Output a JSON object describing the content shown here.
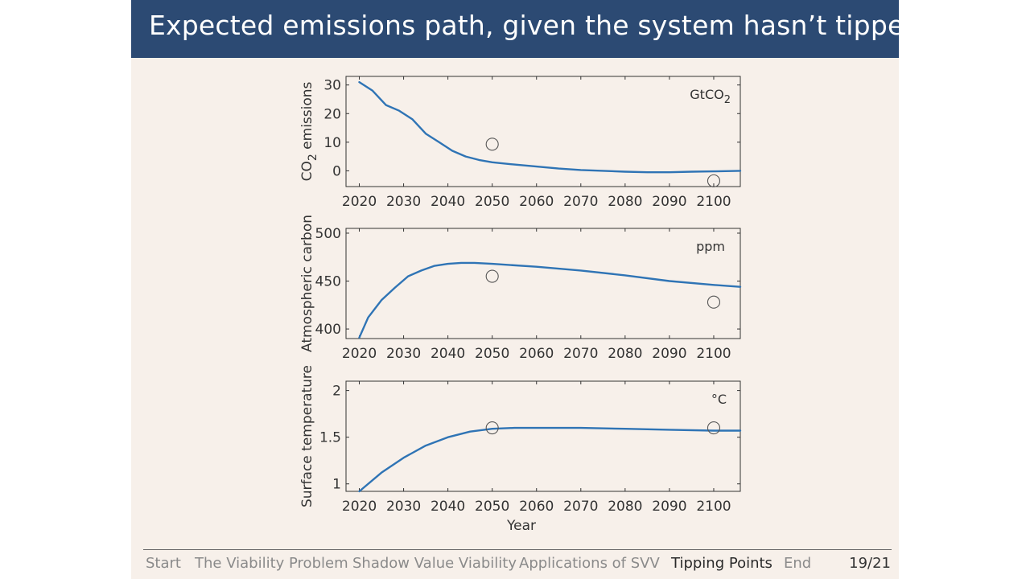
{
  "title": "Expected emissions path, given the system hasn’t tipped:",
  "footer": {
    "nav": [
      {
        "label": "Start",
        "active": false
      },
      {
        "label": "The Viability Problem",
        "active": false
      },
      {
        "label": "Shadow Value Viability",
        "active": false
      },
      {
        "label": "Applications of SVV",
        "active": false
      },
      {
        "label": "Tipping Points",
        "active": true
      },
      {
        "label": "End",
        "active": false
      }
    ],
    "page": "19/21"
  },
  "colors": {
    "line": "#2f74b5",
    "title_bar": "#2c4a73",
    "slide_bg": "#f7f0ea"
  },
  "chart_data": [
    {
      "type": "line",
      "ylabel": "CO2 emissions",
      "ylabel_main": "CO",
      "ylabel_sub": "2",
      "ylabel_rest": " emissions",
      "unit": "GtCO",
      "unit_sub": "2",
      "xlim": [
        2017,
        2106
      ],
      "ylim": [
        -5.5,
        33
      ],
      "yticks": [
        0,
        10,
        20,
        30
      ],
      "xticks": [
        2020,
        2030,
        2040,
        2050,
        2060,
        2070,
        2080,
        2090,
        2100
      ],
      "x": [
        2020,
        2023,
        2026,
        2029,
        2032,
        2035,
        2038,
        2041,
        2044,
        2047,
        2050,
        2055,
        2060,
        2065,
        2070,
        2075,
        2080,
        2085,
        2090,
        2095,
        2100,
        2106
      ],
      "y": [
        31,
        28,
        23,
        21,
        18,
        13,
        10,
        7,
        5,
        3.8,
        3,
        2.2,
        1.5,
        0.8,
        0.3,
        0,
        -0.3,
        -0.5,
        -0.5,
        -0.3,
        -0.2,
        0
      ],
      "targets": [
        {
          "x": 2050,
          "y": 9.3
        },
        {
          "x": 2100,
          "y": -3.5
        }
      ]
    },
    {
      "type": "line",
      "ylabel": "Atmospheric carbon",
      "unit": "ppm",
      "xlim": [
        2017,
        2106
      ],
      "ylim": [
        390,
        505
      ],
      "yticks": [
        400,
        450,
        500
      ],
      "xticks": [
        2020,
        2030,
        2040,
        2050,
        2060,
        2070,
        2080,
        2090,
        2100
      ],
      "x": [
        2020,
        2022,
        2025,
        2028,
        2031,
        2034,
        2037,
        2040,
        2043,
        2046,
        2050,
        2060,
        2070,
        2080,
        2090,
        2100,
        2106
      ],
      "y": [
        391,
        412,
        430,
        443,
        455,
        461,
        466,
        468,
        469,
        469,
        468,
        465,
        461,
        456,
        450,
        446,
        444
      ],
      "targets": [
        {
          "x": 2050,
          "y": 455
        },
        {
          "x": 2100,
          "y": 428
        }
      ]
    },
    {
      "type": "line",
      "ylabel": "Surface temperature",
      "unit": "°C",
      "xlabel": "Year",
      "xlim": [
        2017,
        2106
      ],
      "ylim": [
        0.92,
        2.1
      ],
      "yticks": [
        1,
        1.5,
        2
      ],
      "xticks": [
        2020,
        2030,
        2040,
        2050,
        2060,
        2070,
        2080,
        2090,
        2100
      ],
      "x": [
        2020,
        2025,
        2030,
        2035,
        2040,
        2045,
        2050,
        2055,
        2060,
        2070,
        2080,
        2090,
        2100,
        2106
      ],
      "y": [
        0.92,
        1.12,
        1.28,
        1.41,
        1.5,
        1.56,
        1.59,
        1.6,
        1.6,
        1.6,
        1.59,
        1.58,
        1.57,
        1.57
      ],
      "targets": [
        {
          "x": 2050,
          "y": 1.6
        },
        {
          "x": 2100,
          "y": 1.6
        }
      ]
    }
  ]
}
